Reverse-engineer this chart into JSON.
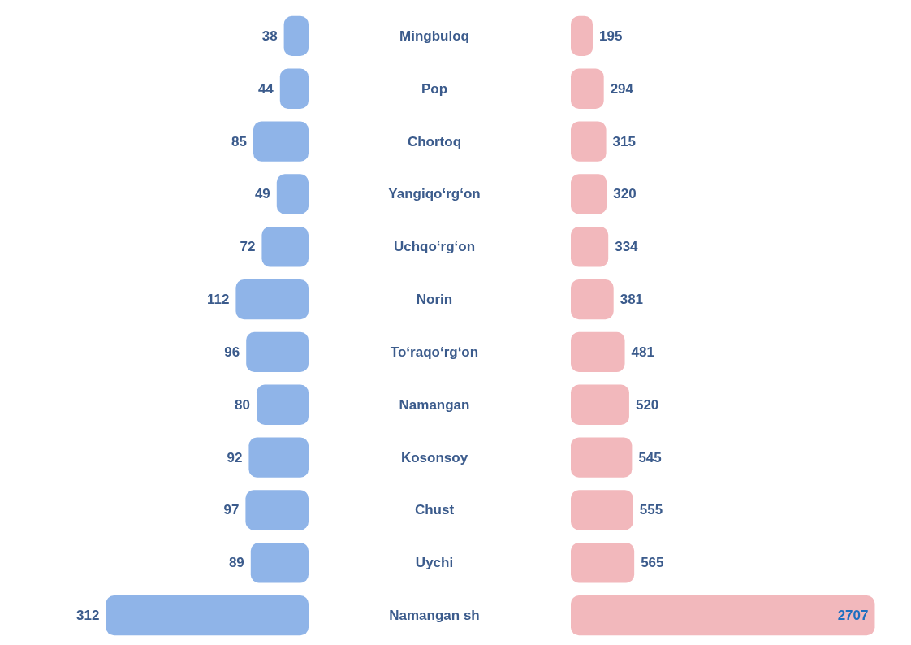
{
  "chart_data": [
    {
      "type": "bar",
      "orientation": "horizontal",
      "categories": [
        "Mingbuloq",
        "Pop",
        "Chortoq",
        "Yangiqo‘rg‘on",
        "Uchqo‘rg‘on",
        "Norin",
        "To‘raqo‘rg‘on",
        "Namangan",
        "Kosonsoy",
        "Chust",
        "Uychi",
        "Namangan sh"
      ],
      "values": [
        38,
        44,
        85,
        49,
        72,
        112,
        96,
        80,
        92,
        97,
        89,
        312
      ],
      "color": "#8fb4e8",
      "data_labels": true,
      "tick_labels": "y",
      "grid": false
    },
    {
      "type": "bar",
      "orientation": "horizontal",
      "categories": [
        null,
        null,
        null,
        null,
        null,
        null,
        null,
        null,
        null,
        null,
        null,
        null
      ],
      "values": [
        195,
        294,
        315,
        320,
        334,
        381,
        481,
        520,
        545,
        555,
        565,
        2707
      ],
      "color": "#f2b8bc",
      "data_labels": true,
      "tick_labels": false,
      "grid": false
    }
  ]
}
